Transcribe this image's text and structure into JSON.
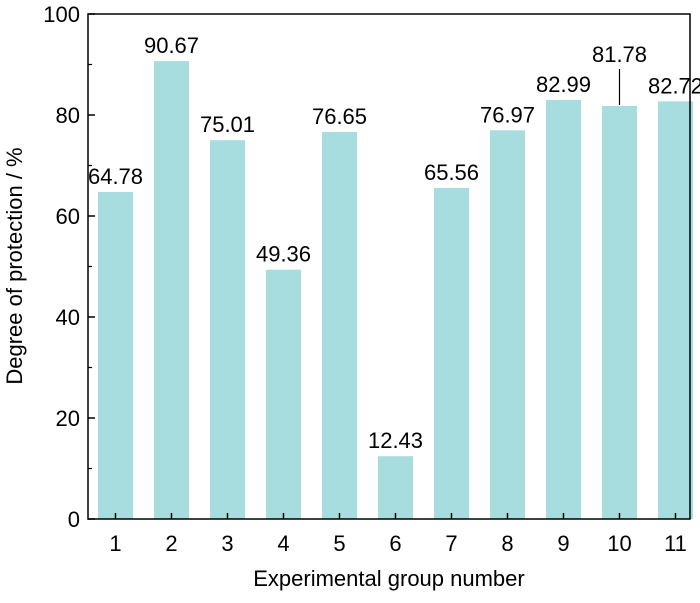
{
  "chart_data": {
    "type": "bar",
    "categories": [
      "1",
      "2",
      "3",
      "4",
      "5",
      "6",
      "7",
      "8",
      "9",
      "10",
      "11"
    ],
    "values": [
      64.78,
      90.67,
      75.01,
      49.36,
      76.65,
      12.43,
      65.56,
      76.97,
      82.99,
      81.78,
      82.72
    ],
    "data_labels": [
      "64.78",
      "90.67",
      "75.01",
      "49.36",
      "76.65",
      "12.43",
      "65.56",
      "76.97",
      "82.99",
      "81.78",
      "82.72"
    ],
    "xlabel": "Experimental group number",
    "ylabel": "Degree of protection / %",
    "ylim": [
      0,
      100
    ],
    "yticks": [
      0,
      20,
      40,
      60,
      80,
      100
    ],
    "ytick_labels": [
      "0",
      "20",
      "40",
      "60",
      "80",
      "100"
    ],
    "grid": false,
    "legend": "none",
    "colors": {
      "bar": "#a8dde0",
      "axis": "#000000",
      "text": "#000000"
    }
  }
}
